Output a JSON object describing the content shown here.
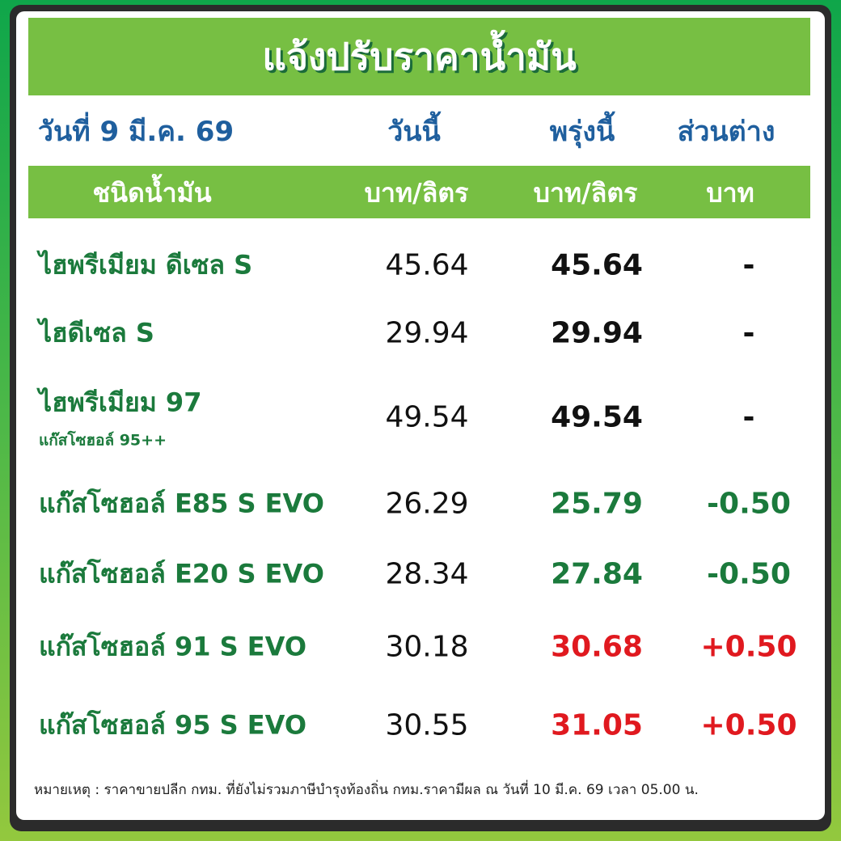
{
  "title": "แจ้งปรับราคาน้ำมัน",
  "date_label": "วันที่ 9 มี.ค. 69",
  "columns": {
    "today": "วันนี้",
    "tomorrow": "พรุ่งนี้",
    "diff": "ส่วนต่าง"
  },
  "header": {
    "type": "ชนิดน้ำมัน",
    "today_unit": "บาท/ลิตร",
    "tomorrow_unit": "บาท/ลิตร",
    "diff_unit": "บาท"
  },
  "colors": {
    "green_bar": "#77bf43",
    "blue": "#1f5f9e",
    "name_green": "#1b7a3c",
    "decrease": "#1b7a3c",
    "increase": "#e0191f",
    "unchanged": "#111111"
  },
  "rows": [
    {
      "name": "ไฮพรีเมียม ดีเซล S",
      "sub": "",
      "today": "45.64",
      "tomorrow": "45.64",
      "diff": "-",
      "trend": "unchanged"
    },
    {
      "name": "ไฮดีเซล S",
      "sub": "",
      "today": "29.94",
      "tomorrow": "29.94",
      "diff": "-",
      "trend": "unchanged"
    },
    {
      "name": "ไฮพรีเมียม 97",
      "sub": "แก๊สโซฮอล์ 95++",
      "today": "49.54",
      "tomorrow": "49.54",
      "diff": "-",
      "trend": "unchanged"
    },
    {
      "name": "แก๊สโซฮอล์ E85 S EVO",
      "sub": "",
      "today": "26.29",
      "tomorrow": "25.79",
      "diff": "-0.50",
      "trend": "decrease"
    },
    {
      "name": "แก๊สโซฮอล์ E20 S EVO",
      "sub": "",
      "today": "28.34",
      "tomorrow": "27.84",
      "diff": "-0.50",
      "trend": "decrease"
    },
    {
      "name": "แก๊สโซฮอล์ 91 S EVO",
      "sub": "",
      "today": "30.18",
      "tomorrow": "30.68",
      "diff": "+0.50",
      "trend": "increase"
    },
    {
      "name": "แก๊สโซฮอล์ 95 S EVO",
      "sub": "",
      "today": "30.55",
      "tomorrow": "31.05",
      "diff": "+0.50",
      "trend": "increase"
    }
  ],
  "footer": "หมายเหตุ :  ราคาขายปลีก กทม. ที่ยังไม่รวมภาษีบำรุงท้องถิ่น  กทม.ราคามีผล ณ วันที่ 10 มี.ค. 69 เวลา 05.00 น."
}
